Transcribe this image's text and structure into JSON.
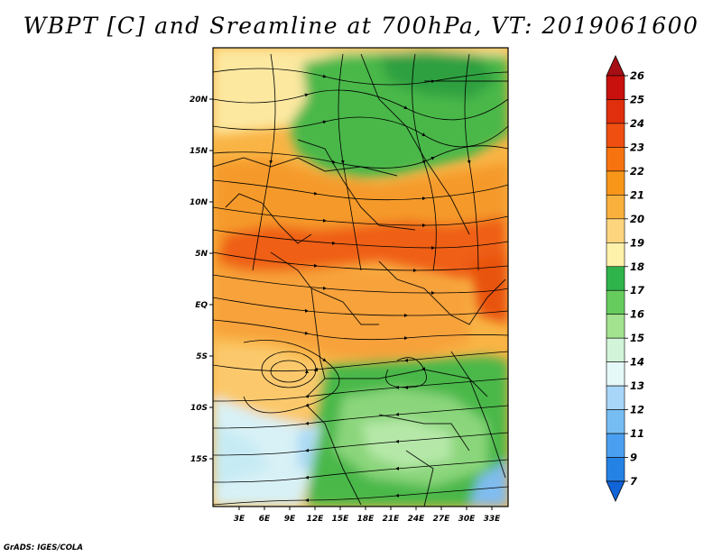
{
  "title": "WBPT [C] and Sreamline at 700hPa, VT: 2019061600",
  "footer": "GrADS: IGES/COLA",
  "axes": {
    "y_labels": [
      "20N",
      "15N",
      "10N",
      "5N",
      "EQ",
      "5S",
      "10S",
      "15S"
    ],
    "x_labels": [
      "3E",
      "6E",
      "9E",
      "12E",
      "15E",
      "18E",
      "21E",
      "24E",
      "27E",
      "30E",
      "33E"
    ]
  },
  "colorbar": {
    "labels": [
      "26",
      "25",
      "24",
      "23",
      "22",
      "21",
      "20",
      "19",
      "18",
      "17",
      "16",
      "15",
      "14",
      "13",
      "12",
      "11",
      "9",
      "7"
    ],
    "colors": [
      "#a50f15",
      "#c8100c",
      "#e02f0c",
      "#ef4f10",
      "#f6730f",
      "#f8961a",
      "#f9b03c",
      "#fdd57f",
      "#fef1a9",
      "#2fb44b",
      "#66cc5e",
      "#a3e28f",
      "#d2f4d8",
      "#e6f9f9",
      "#a8d6f8",
      "#76bdf3",
      "#4b9ff0",
      "#2482e5",
      "#1164d8"
    ]
  },
  "map_colors": {
    "warm_orange": "#f59a2a",
    "hot": "#ef5e15",
    "light_orange": "#f9b445",
    "cream": "#fde8a0",
    "green": "#4ab84a",
    "light_green": "#8bd67b",
    "pale_blue": "#d8f1f6",
    "blue": "#7fbcf0"
  }
}
